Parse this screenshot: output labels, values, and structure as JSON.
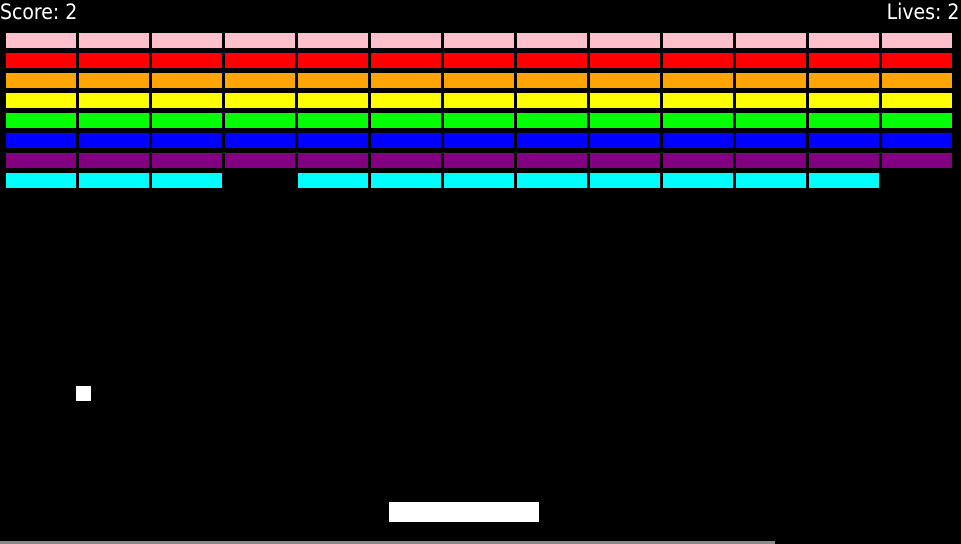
{
  "hud": {
    "score": "Score: 2",
    "lives": "Lives: 2"
  },
  "brick_rows": [
    {
      "color": "#ffc0cb",
      "bricks": [
        true,
        true,
        true,
        true,
        true,
        true,
        true,
        true,
        true,
        true,
        true,
        true,
        true
      ]
    },
    {
      "color": "#ff0000",
      "bricks": [
        true,
        true,
        true,
        true,
        true,
        true,
        true,
        true,
        true,
        true,
        true,
        true,
        true
      ]
    },
    {
      "color": "#ffa500",
      "bricks": [
        true,
        true,
        true,
        true,
        true,
        true,
        true,
        true,
        true,
        true,
        true,
        true,
        true
      ]
    },
    {
      "color": "#ffff00",
      "bricks": [
        true,
        true,
        true,
        true,
        true,
        true,
        true,
        true,
        true,
        true,
        true,
        true,
        true
      ]
    },
    {
      "color": "#00ff00",
      "bricks": [
        true,
        true,
        true,
        true,
        true,
        true,
        true,
        true,
        true,
        true,
        true,
        true,
        true
      ]
    },
    {
      "color": "#0000ff",
      "bricks": [
        true,
        true,
        true,
        true,
        true,
        true,
        true,
        true,
        true,
        true,
        true,
        true,
        true
      ]
    },
    {
      "color": "#800080",
      "bricks": [
        true,
        true,
        true,
        true,
        true,
        true,
        true,
        true,
        true,
        true,
        true,
        true,
        true
      ]
    },
    {
      "color": "#00ffff",
      "bricks": [
        true,
        true,
        true,
        false,
        true,
        true,
        true,
        true,
        true,
        true,
        true,
        true,
        false
      ]
    }
  ]
}
